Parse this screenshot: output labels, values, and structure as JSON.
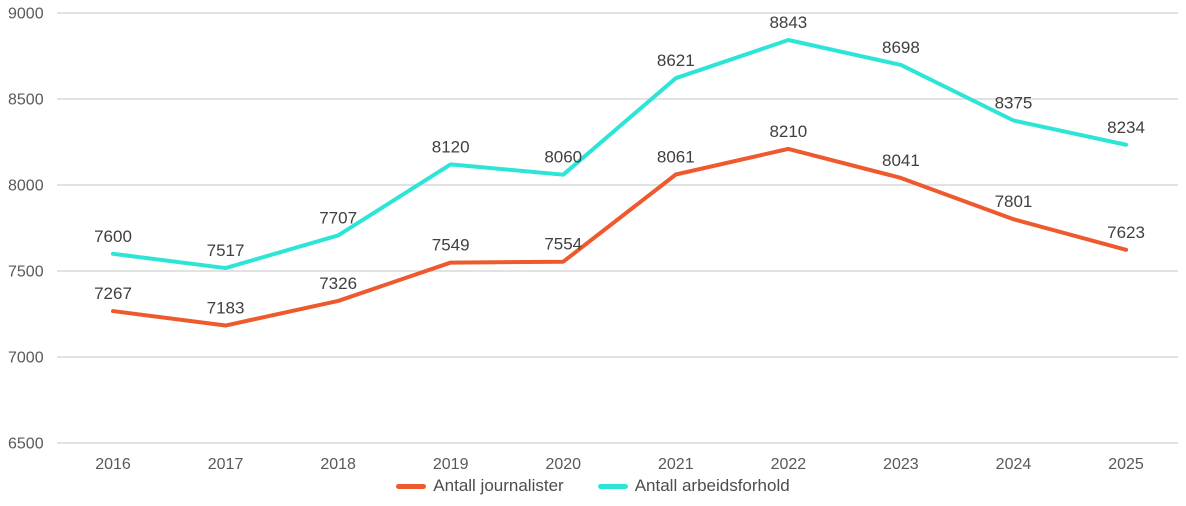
{
  "chart_data": {
    "type": "line",
    "title": "",
    "xlabel": "",
    "ylabel": "",
    "categories": [
      "2016",
      "2017",
      "2018",
      "2019",
      "2020",
      "2021",
      "2022",
      "2023",
      "2024",
      "2025"
    ],
    "series": [
      {
        "name": "Antall journalister",
        "color": "#ee5a2d",
        "values": [
          7267,
          7183,
          7326,
          7549,
          7554,
          8061,
          8210,
          8041,
          7801,
          7623
        ]
      },
      {
        "name": "Antall arbeidsforhold",
        "color": "#2de5d7",
        "values": [
          7600,
          7517,
          7707,
          8120,
          8060,
          8621,
          8843,
          8698,
          8375,
          8234
        ]
      }
    ],
    "ylim": [
      6500,
      9000
    ],
    "y_ticks": [
      6500,
      7000,
      7500,
      8000,
      8500,
      9000
    ],
    "grid": "horizontal",
    "data_labels": true,
    "legend_position": "bottom",
    "colors": {
      "background": "#ffffff",
      "gridline": "#d9d9d9",
      "axis_text": "#595959",
      "data_label_text": "#404040"
    }
  }
}
